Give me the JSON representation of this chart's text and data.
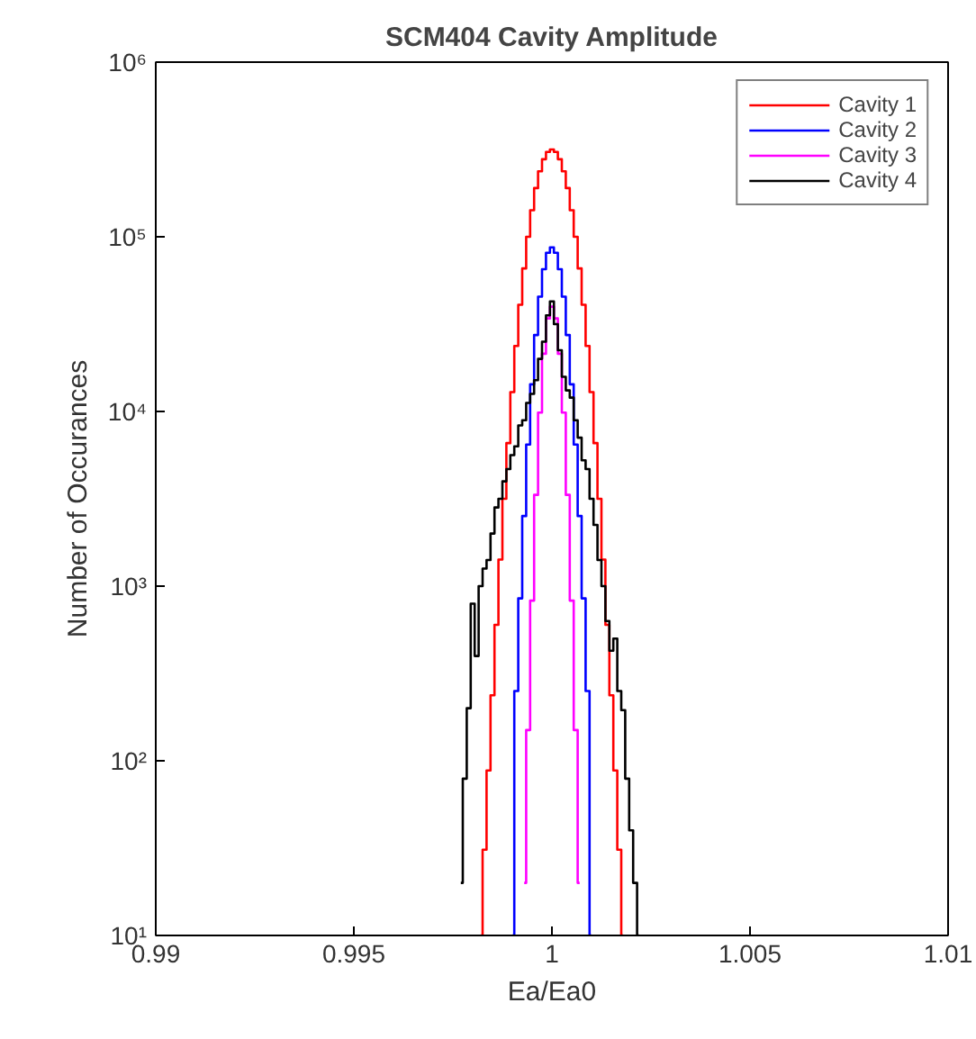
{
  "chart_data": {
    "type": "step",
    "title": "SCM404 Cavity Amplitude",
    "xlabel": "Ea/Ea0",
    "ylabel": "Number of Occurances",
    "log": "y",
    "grid": false,
    "legend": "top right",
    "line_style": "solid",
    "marker": "none",
    "xlim": [
      0.99,
      1.01
    ],
    "xticks": [
      0.99,
      0.995,
      1,
      1.005,
      1.01
    ],
    "ylim": [
      10,
      1000000
    ],
    "yticks": [
      {
        "value": 10,
        "label": "10¹"
      },
      {
        "value": 100,
        "label": "10²"
      },
      {
        "value": 1000,
        "label": "10³"
      },
      {
        "value": 10000,
        "label": "10⁴"
      },
      {
        "value": 100000,
        "label": "10⁵"
      },
      {
        "value": 1000000,
        "label": "10⁶"
      }
    ],
    "series": [
      {
        "name": "Cavity 1",
        "color": "#ff0000",
        "x": [
          0.9982,
          0.9983,
          0.9984,
          0.9985,
          0.9986,
          0.9987,
          0.9988,
          0.9989,
          0.999,
          0.9991,
          0.9992,
          0.9993,
          0.9994,
          0.9995,
          0.9996,
          0.9997,
          0.9998,
          0.9999,
          1.0,
          1.0001,
          1.0002,
          1.0003,
          1.0004,
          1.0005,
          1.0006,
          1.0007,
          1.0008,
          1.0009,
          1.001,
          1.0011,
          1.0012,
          1.0013,
          1.0014,
          1.0015,
          1.0016,
          1.0017,
          1.0018
        ],
        "values": [
          10,
          31,
          88,
          237,
          600,
          1420,
          3160,
          6590,
          12900,
          23700,
          40800,
          65900,
          100000,
          142000,
          190000,
          237000,
          278000,
          306000,
          316000,
          306000,
          278000,
          237000,
          190000,
          142000,
          100000,
          65900,
          40800,
          23700,
          12900,
          6590,
          3160,
          1420,
          600,
          237,
          88,
          31,
          10
        ]
      },
      {
        "name": "Cavity 2",
        "color": "#0000ff",
        "x": [
          0.999,
          0.9991,
          0.9992,
          0.9993,
          0.9994,
          0.9995,
          0.9996,
          0.9997,
          0.9998,
          0.9999,
          1.0,
          1.0001,
          1.0002,
          1.0003,
          1.0004,
          1.0005,
          1.0006,
          1.0007,
          1.0008,
          1.0009,
          1.001
        ],
        "values": [
          10,
          251,
          851,
          2520,
          6460,
          14300,
          27400,
          45400,
          65200,
          81000,
          87000,
          81000,
          65200,
          45400,
          27400,
          14300,
          6460,
          2520,
          851,
          251,
          10
        ]
      },
      {
        "name": "Cavity 3",
        "color": "#ff00ff",
        "x": [
          0.9993,
          0.9994,
          0.9995,
          0.9996,
          0.9997,
          0.9998,
          0.9999,
          1.0,
          1.0001,
          1.0002,
          1.0003,
          1.0004,
          1.0005,
          1.0006,
          1.0007
        ],
        "values": [
          20,
          150,
          826,
          3330,
          9860,
          21400,
          34100,
          39800,
          34100,
          21400,
          9860,
          3330,
          826,
          150,
          20
        ]
      },
      {
        "name": "Cavity 4",
        "color": "#000000",
        "x": [
          0.9977,
          0.9978,
          0.9979,
          0.998,
          0.9981,
          0.9982,
          0.9983,
          0.9984,
          0.9985,
          0.9986,
          0.9987,
          0.9988,
          0.9989,
          0.999,
          0.9991,
          0.9992,
          0.9993,
          0.9994,
          0.9995,
          0.9996,
          0.9997,
          0.9998,
          0.9999,
          1.0,
          1.0001,
          1.0002,
          1.0003,
          1.0004,
          1.0005,
          1.0006,
          1.0007,
          1.0008,
          1.0009,
          1.001,
          1.0011,
          1.0012,
          1.0013,
          1.0014,
          1.0015,
          1.0016,
          1.0017,
          1.0018,
          1.0019,
          1.002,
          1.0021,
          1.0022
        ],
        "values": [
          20,
          79,
          200,
          794,
          398,
          1000,
          1260,
          1410,
          2000,
          2820,
          3160,
          3980,
          4680,
          5620,
          6310,
          8320,
          8910,
          11200,
          12600,
          15100,
          20000,
          25100,
          35500,
          42700,
          31600,
          22400,
          15800,
          13200,
          12000,
          8910,
          7080,
          5250,
          4680,
          3160,
          2240,
          1410,
          1000,
          631,
          427,
          501,
          251,
          195,
          79,
          40,
          20,
          10
        ]
      }
    ]
  }
}
